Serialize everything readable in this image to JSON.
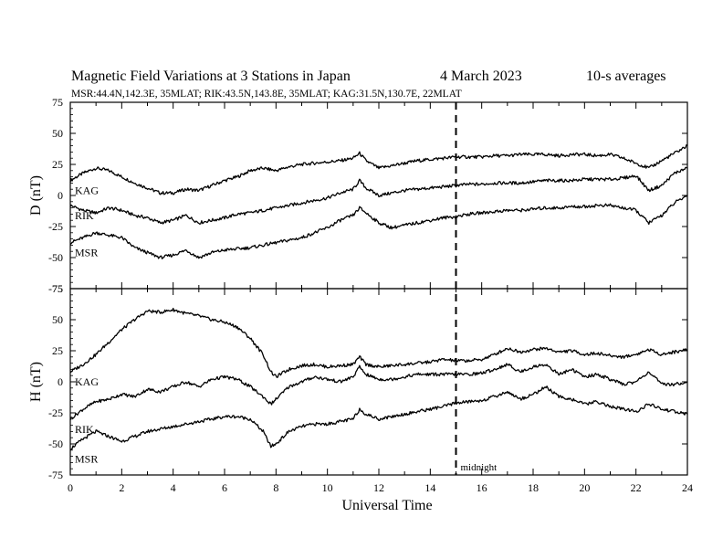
{
  "figure": {
    "title": "Magnetic Field Variations at 3 Stations in Japan",
    "date": "4   March   2023",
    "averaging": "10-s averages",
    "subtitle": "MSR:44.4N,142.3E, 35MLAT;  RIK:43.5N,143.8E, 35MLAT;  KAG:31.5N,130.7E, 22MLAT",
    "midnight_label": "midnight",
    "midnight_ut": 15
  },
  "chart_data": [
    {
      "type": "line",
      "panel": "D",
      "xlabel": "",
      "ylabel": "D (nT)",
      "xlim": [
        0,
        24
      ],
      "ylim": [
        -75,
        75
      ],
      "yticks": [
        75,
        50,
        25,
        0,
        -25,
        -50,
        -75
      ],
      "grid": false,
      "series": [
        {
          "name": "KAG",
          "x": [
            0,
            0.5,
            1,
            1.5,
            2,
            2.5,
            3,
            3.5,
            4,
            4.5,
            5,
            5.5,
            6,
            6.5,
            7,
            7.5,
            8,
            8.5,
            9,
            9.5,
            10,
            10.5,
            11,
            11.25,
            11.5,
            12,
            12.5,
            13,
            13.5,
            14,
            14.5,
            15,
            15.5,
            16,
            16.5,
            17,
            17.5,
            18,
            18.5,
            19,
            19.5,
            20,
            20.5,
            21,
            21.5,
            22,
            22.5,
            23,
            23.5,
            24
          ],
          "y": [
            12,
            18,
            22,
            20,
            15,
            10,
            6,
            2,
            2,
            5,
            4,
            8,
            12,
            15,
            20,
            22,
            20,
            23,
            25,
            26,
            27,
            28,
            30,
            34,
            28,
            22,
            24,
            26,
            28,
            29,
            30,
            31,
            31,
            31,
            32,
            32,
            33,
            33,
            33,
            32,
            33,
            33,
            32,
            33,
            30,
            26,
            22,
            28,
            34,
            40
          ]
        },
        {
          "name": "RIK",
          "x": [
            0,
            0.5,
            1,
            1.5,
            2,
            2.5,
            3,
            3.5,
            4,
            4.5,
            5,
            5.5,
            6,
            6.5,
            7,
            7.5,
            8,
            8.5,
            9,
            9.5,
            10,
            10.5,
            11,
            11.25,
            11.5,
            12,
            12.5,
            13,
            13.5,
            14,
            14.5,
            15,
            15.5,
            16,
            16.5,
            17,
            17.5,
            18,
            18.5,
            19,
            19.5,
            20,
            20.5,
            21,
            21.5,
            22,
            22.5,
            23,
            23.5,
            24
          ],
          "y": [
            -8,
            -12,
            -14,
            -10,
            -12,
            -16,
            -18,
            -22,
            -20,
            -16,
            -22,
            -20,
            -18,
            -15,
            -14,
            -12,
            -10,
            -8,
            -6,
            -4,
            -2,
            2,
            5,
            12,
            6,
            0,
            2,
            4,
            5,
            6,
            7,
            8,
            9,
            9,
            10,
            10,
            10,
            11,
            12,
            12,
            12,
            13,
            13,
            13,
            14,
            16,
            4,
            8,
            18,
            22
          ]
        },
        {
          "name": "MSR",
          "x": [
            0,
            0.5,
            1,
            1.5,
            2,
            2.5,
            3,
            3.5,
            4,
            4.5,
            5,
            5.5,
            6,
            6.5,
            7,
            7.5,
            8,
            8.5,
            9,
            9.5,
            10,
            10.5,
            11,
            11.25,
            11.5,
            12,
            12.5,
            13,
            13.5,
            14,
            14.5,
            15,
            15.5,
            16,
            16.5,
            17,
            17.5,
            18,
            18.5,
            19,
            19.5,
            20,
            20.5,
            21,
            21.5,
            22,
            22.5,
            23,
            23.5,
            24
          ],
          "y": [
            -38,
            -34,
            -30,
            -32,
            -34,
            -42,
            -46,
            -50,
            -48,
            -44,
            -50,
            -46,
            -44,
            -43,
            -42,
            -40,
            -38,
            -36,
            -34,
            -30,
            -26,
            -20,
            -16,
            -10,
            -14,
            -22,
            -26,
            -24,
            -22,
            -20,
            -18,
            -17,
            -15,
            -14,
            -13,
            -12,
            -12,
            -11,
            -10,
            -10,
            -9,
            -9,
            -8,
            -8,
            -10,
            -12,
            -22,
            -16,
            -6,
            0
          ]
        }
      ]
    },
    {
      "type": "line",
      "panel": "H",
      "xlabel": "Universal Time",
      "ylabel": "H (nT)",
      "xlim": [
        0,
        24
      ],
      "ylim": [
        -75,
        75
      ],
      "yticks": [
        75,
        50,
        25,
        0,
        -25,
        -50,
        -75
      ],
      "xticks": [
        0,
        2,
        4,
        6,
        8,
        10,
        12,
        14,
        16,
        18,
        20,
        22,
        24
      ],
      "grid": false,
      "series": [
        {
          "name": "KAG",
          "x": [
            0,
            0.5,
            1,
            1.5,
            2,
            2.5,
            3,
            3.5,
            4,
            4.5,
            5,
            5.5,
            6,
            6.5,
            7,
            7.5,
            7.8,
            8,
            8.5,
            9,
            9.5,
            10,
            10.5,
            11,
            11.25,
            11.5,
            12,
            12.5,
            13,
            13.5,
            14,
            14.5,
            15,
            15.5,
            16,
            16.5,
            17,
            17.5,
            18,
            18.5,
            19,
            19.5,
            20,
            20.5,
            21,
            21.5,
            22,
            22.5,
            23,
            23.5,
            24
          ],
          "y": [
            8,
            14,
            22,
            32,
            42,
            50,
            57,
            56,
            58,
            55,
            53,
            50,
            48,
            44,
            35,
            22,
            8,
            4,
            10,
            13,
            14,
            12,
            13,
            14,
            20,
            14,
            12,
            13,
            14,
            15,
            16,
            18,
            17,
            17,
            18,
            22,
            27,
            24,
            26,
            27,
            24,
            25,
            22,
            23,
            21,
            20,
            22,
            26,
            22,
            24,
            26
          ]
        },
        {
          "name": "RIK",
          "x": [
            0,
            0.5,
            1,
            1.5,
            2,
            2.5,
            3,
            3.5,
            4,
            4.5,
            5,
            5.5,
            6,
            6.5,
            7,
            7.5,
            7.8,
            8,
            8.5,
            9,
            9.5,
            10,
            10.5,
            11,
            11.25,
            11.5,
            12,
            12.5,
            13,
            13.5,
            14,
            14.5,
            15,
            15.5,
            16,
            16.5,
            17,
            17.5,
            18,
            18.5,
            19,
            19.5,
            20,
            20.5,
            21,
            21.5,
            22,
            22.5,
            23,
            23.5,
            24
          ],
          "y": [
            -30,
            -22,
            -16,
            -14,
            -10,
            -12,
            -6,
            -8,
            -4,
            0,
            -4,
            2,
            4,
            2,
            -4,
            -12,
            -18,
            -14,
            -4,
            0,
            4,
            2,
            0,
            4,
            12,
            6,
            2,
            2,
            4,
            6,
            6,
            6,
            6,
            6,
            7,
            10,
            14,
            8,
            12,
            14,
            6,
            10,
            4,
            6,
            2,
            -2,
            0,
            8,
            -2,
            -2,
            0
          ]
        },
        {
          "name": "MSR",
          "x": [
            0,
            0.5,
            1,
            1.5,
            2,
            2.5,
            3,
            3.5,
            4,
            4.5,
            5,
            5.5,
            6,
            6.5,
            7,
            7.5,
            7.8,
            8,
            8.5,
            9,
            9.5,
            10,
            10.5,
            11,
            11.25,
            11.5,
            12,
            12.5,
            13,
            13.5,
            14,
            14.5,
            15,
            15.5,
            16,
            16.5,
            17,
            17.5,
            18,
            18.5,
            19,
            19.5,
            20,
            20.5,
            21,
            21.5,
            22,
            22.5,
            23,
            23.5,
            24
          ],
          "y": [
            -54,
            -46,
            -40,
            -44,
            -48,
            -44,
            -40,
            -38,
            -36,
            -34,
            -32,
            -30,
            -28,
            -28,
            -30,
            -40,
            -52,
            -50,
            -40,
            -36,
            -34,
            -34,
            -32,
            -30,
            -22,
            -26,
            -30,
            -28,
            -26,
            -24,
            -22,
            -20,
            -17,
            -16,
            -15,
            -12,
            -8,
            -14,
            -10,
            -4,
            -12,
            -14,
            -18,
            -16,
            -20,
            -22,
            -24,
            -18,
            -22,
            -24,
            -26
          ]
        }
      ]
    }
  ]
}
